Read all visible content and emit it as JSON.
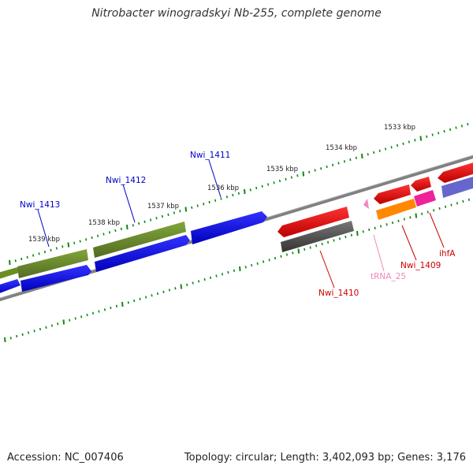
{
  "title": "Nitrobacter winogradskyi Nb-255, complete genome",
  "footer": {
    "accession": "Accession: NC_007406",
    "summary": "Topology: circular; Length: 3,402,093 bp; Genes: 3,176"
  },
  "ruler_labels": [
    "1533 kbp",
    "1534 kbp",
    "1535 kbp",
    "1536 kbp",
    "1537 kbp",
    "1538 kbp",
    "1539 kbp"
  ],
  "gene_labels": [
    {
      "text": "Nwi_1413",
      "color": "#0000cc"
    },
    {
      "text": "Nwi_1412",
      "color": "#0000cc"
    },
    {
      "text": "Nwi_1411",
      "color": "#0000cc"
    },
    {
      "text": "Nwi_1410",
      "color": "#cc0000"
    },
    {
      "text": "tRNA_25",
      "color": "#ee88bb"
    },
    {
      "text": "Nwi_1409",
      "color": "#cc0000"
    },
    {
      "text": "ihfA",
      "color": "#cc0000"
    }
  ],
  "colors": {
    "forward_cds": "#0000ee",
    "reverse_cds": "#ee0000",
    "olive_feature": "#6b8e23",
    "gray_feature": "#555555",
    "orange_feature": "#ff8800",
    "magenta_feature": "#ee2299",
    "purple_feature": "#6666cc",
    "trna": "#ee88bb",
    "ticks": "#118811",
    "backbone": "#808080"
  }
}
